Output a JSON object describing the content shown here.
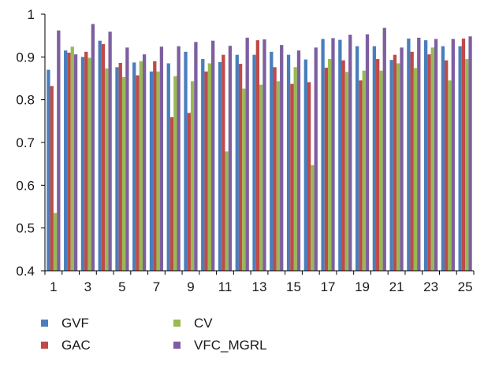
{
  "chart_data": {
    "type": "bar",
    "title": "",
    "xlabel": "",
    "ylabel": "",
    "ylim": [
      0.4,
      1.0
    ],
    "yticks": [
      "0.4",
      "0.5",
      "0.6",
      "0.7",
      "0.8",
      "0.9",
      "1"
    ],
    "categories": [
      "1",
      "2",
      "3",
      "4",
      "5",
      "6",
      "7",
      "8",
      "9",
      "10",
      "11",
      "12",
      "13",
      "14",
      "15",
      "16",
      "17",
      "18",
      "19",
      "20",
      "21",
      "22",
      "23",
      "24",
      "25"
    ],
    "xtick_labels": [
      "1",
      "3",
      "5",
      "7",
      "9",
      "11",
      "13",
      "15",
      "17",
      "19",
      "21",
      "23",
      "25"
    ],
    "grid": false,
    "legend_position": "bottom",
    "series": [
      {
        "name": "GVF",
        "color": "#4a7ebb",
        "values": [
          0.87,
          0.915,
          0.9,
          0.938,
          0.876,
          0.887,
          0.866,
          0.885,
          0.912,
          0.895,
          0.888,
          0.905,
          0.905,
          0.912,
          0.905,
          0.894,
          0.942,
          0.94,
          0.925,
          0.925,
          0.893,
          0.943,
          0.939,
          0.925,
          0.925
        ]
      },
      {
        "name": "GAC",
        "color": "#be4b48",
        "values": [
          0.832,
          0.91,
          0.912,
          0.93,
          0.886,
          0.857,
          0.89,
          0.759,
          0.769,
          0.866,
          0.905,
          0.884,
          0.939,
          0.876,
          0.837,
          0.841,
          0.875,
          0.892,
          0.845,
          0.895,
          0.905,
          0.912,
          0.906,
          0.892,
          0.943
        ]
      },
      {
        "name": "CV",
        "color": "#98b954",
        "values": [
          0.535,
          0.924,
          0.898,
          0.873,
          0.853,
          0.89,
          0.866,
          0.855,
          0.843,
          0.885,
          0.679,
          0.826,
          0.835,
          0.843,
          0.876,
          0.647,
          0.895,
          0.865,
          0.868,
          0.868,
          0.885,
          0.874,
          0.922,
          0.845,
          0.895
        ]
      },
      {
        "name": "VFC_MGRL",
        "color": "#7d5fa0",
        "values": [
          0.962,
          0.906,
          0.977,
          0.959,
          0.922,
          0.906,
          0.924,
          0.925,
          0.935,
          0.938,
          0.926,
          0.945,
          0.941,
          0.928,
          0.915,
          0.922,
          0.944,
          0.952,
          0.953,
          0.968,
          0.922,
          0.945,
          0.942,
          0.942,
          0.948
        ]
      }
    ]
  }
}
